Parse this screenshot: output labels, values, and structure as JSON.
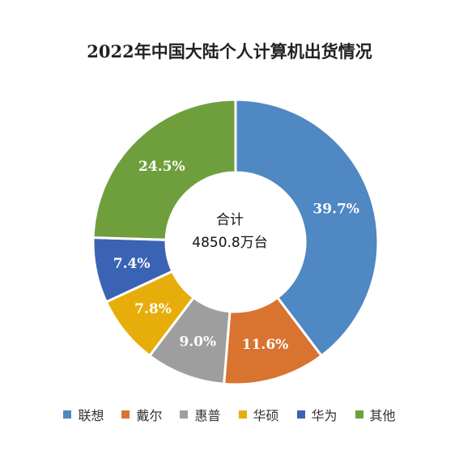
{
  "chart_data": {
    "type": "pie",
    "title": "2022年中国大陆个人计算机出货情况",
    "center_label": {
      "line1": "合计",
      "line2": "4850.8万台"
    },
    "categories": [
      "联想",
      "戴尔",
      "惠普",
      "华硕",
      "华为",
      "其他"
    ],
    "values": [
      39.7,
      11.6,
      9.0,
      7.8,
      7.4,
      24.5
    ],
    "labels": [
      "39.7%",
      "11.6%",
      "9.0%",
      "7.8%",
      "7.4%",
      "24.5%"
    ],
    "colors": [
      "#4f88c2",
      "#d87330",
      "#9e9e9e",
      "#e7ad0a",
      "#3a63b4",
      "#6f9f3c"
    ],
    "legend_position": "bottom"
  }
}
